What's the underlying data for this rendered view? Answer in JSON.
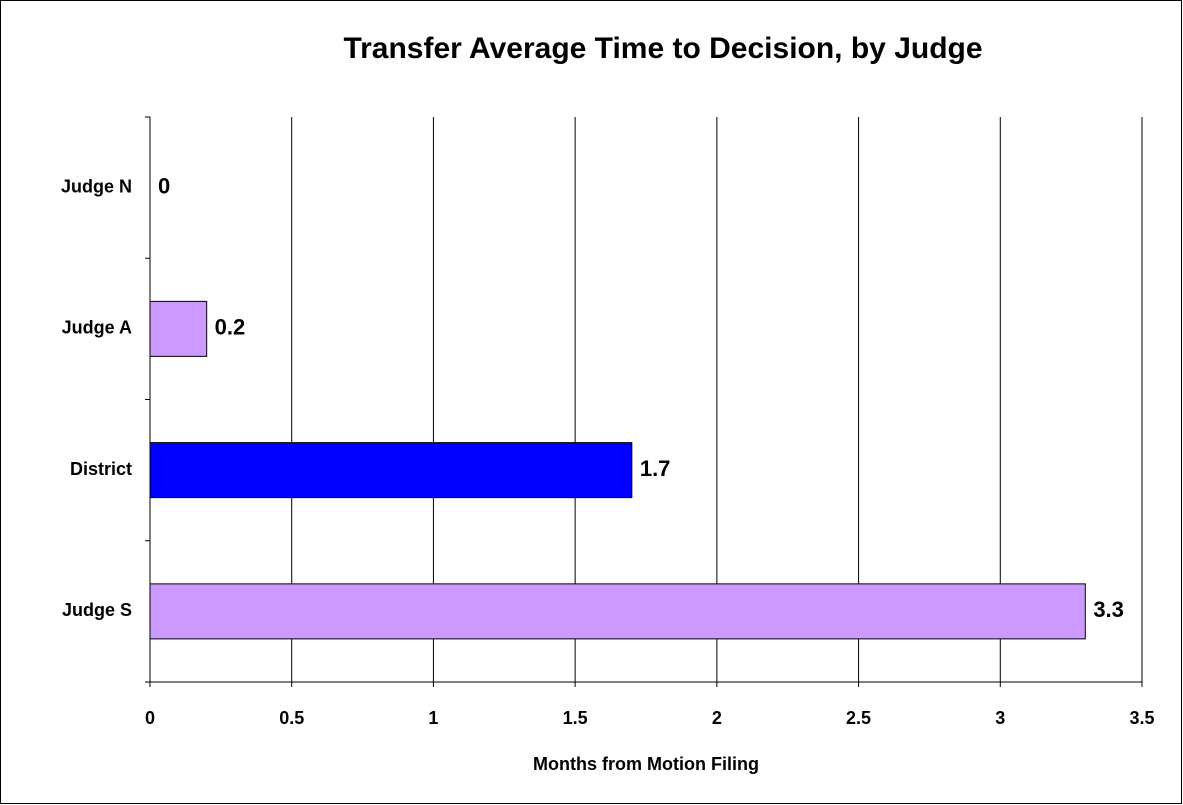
{
  "chart_data": {
    "type": "bar",
    "orientation": "horizontal",
    "title": "Transfer Average Time to Decision, by Judge",
    "x_label": "Months from Motion Filing",
    "categories": [
      "Judge N",
      "Judge A",
      "District",
      "Judge S"
    ],
    "values": [
      0,
      0.2,
      1.7,
      3.3
    ],
    "colors": [
      "#cc99ff",
      "#cc99ff",
      "#0000ff",
      "#cc99ff"
    ],
    "xlim": [
      0,
      3.5
    ],
    "xticks": [
      0,
      0.5,
      1,
      1.5,
      2,
      2.5,
      3,
      3.5
    ],
    "grid": true
  }
}
